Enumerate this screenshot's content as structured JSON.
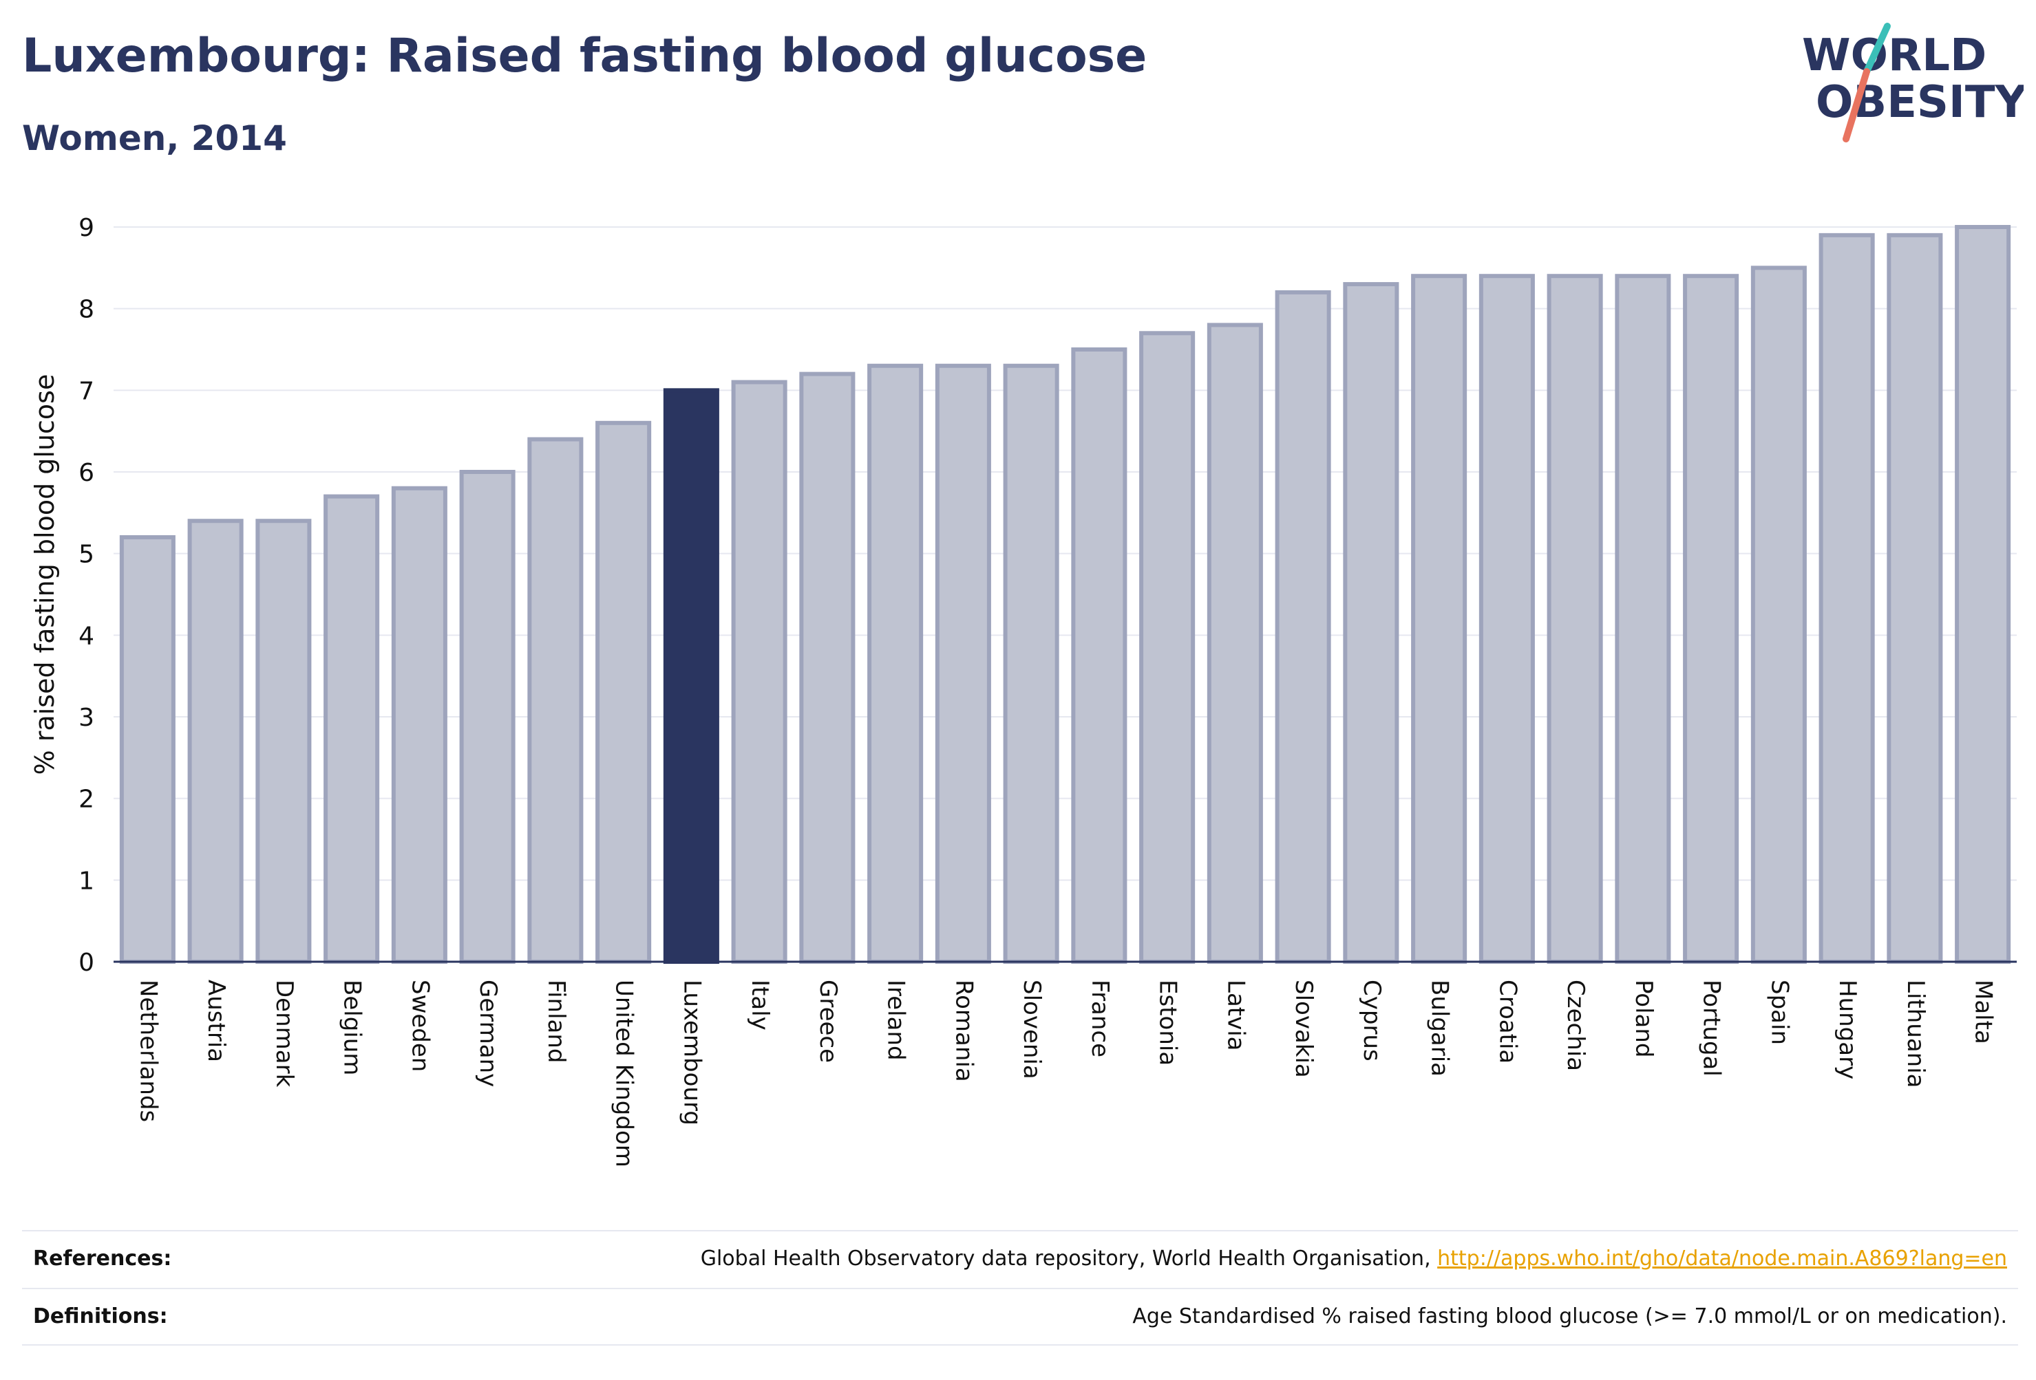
{
  "header": {
    "title": "Luxembourg: Raised fasting blood glucose",
    "subtitle": "Women, 2014"
  },
  "logo": {
    "line1": "WORLD",
    "line2": "OBESITY",
    "accent_teal": "#3bbfb8",
    "accent_coral": "#e8735f"
  },
  "chart_data": {
    "type": "bar",
    "ylabel": "% raised fasting blood glucose",
    "xlabel": "",
    "ylim": [
      0,
      9
    ],
    "yticks": [
      0,
      1,
      2,
      3,
      4,
      5,
      6,
      7,
      8,
      9
    ],
    "grid": true,
    "highlight": "Luxembourg",
    "colors": {
      "bar": "#bfc3d1",
      "bar_edge": "#9ea4bc",
      "highlight": "#2a3560",
      "grid": "#e6e8f0"
    },
    "categories": [
      "Netherlands",
      "Austria",
      "Denmark",
      "Belgium",
      "Sweden",
      "Germany",
      "Finland",
      "United Kingdom",
      "Luxembourg",
      "Italy",
      "Greece",
      "Ireland",
      "Romania",
      "Slovenia",
      "France",
      "Estonia",
      "Latvia",
      "Slovakia",
      "Cyprus",
      "Bulgaria",
      "Croatia",
      "Czechia",
      "Poland",
      "Portugal",
      "Spain",
      "Hungary",
      "Lithuania",
      "Malta"
    ],
    "values": [
      5.2,
      5.4,
      5.4,
      5.7,
      5.8,
      6.0,
      6.4,
      6.6,
      7.0,
      7.1,
      7.2,
      7.3,
      7.3,
      7.3,
      7.5,
      7.7,
      7.8,
      8.2,
      8.3,
      8.4,
      8.4,
      8.4,
      8.4,
      8.4,
      8.5,
      8.9,
      8.9,
      9.0
    ]
  },
  "footer": {
    "references_label": "References:",
    "references_text": "Global Health Observatory data repository, World Health Organisation, ",
    "references_link": "http://apps.who.int/gho/data/node.main.A869?lang=en",
    "definitions_label": "Definitions:",
    "definitions_text": "Age Standardised % raised fasting blood glucose (>= 7.0 mmol/L or on medication)."
  }
}
